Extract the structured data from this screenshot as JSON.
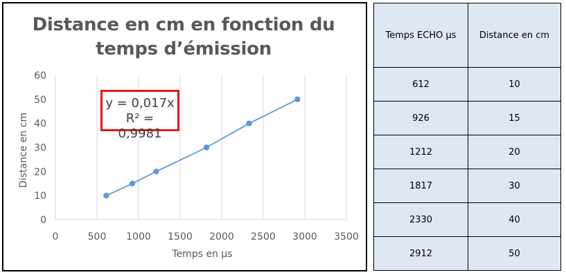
{
  "chart_data": {
    "type": "scatter",
    "title": "Distance en cm en fonction du temps d’émission",
    "xlabel": "Temps en µs",
    "ylabel": "Distance en cm",
    "xlim": [
      0,
      3500
    ],
    "ylim": [
      0,
      60
    ],
    "xticks": [
      0,
      500,
      1000,
      1500,
      2000,
      2500,
      3000,
      3500
    ],
    "yticks": [
      0,
      10,
      20,
      30,
      40,
      50,
      60
    ],
    "grid": "vertical",
    "legend": "none",
    "series": [
      {
        "x": [
          612,
          926,
          1212,
          1817,
          2330,
          2912
        ],
        "y": [
          10,
          15,
          20,
          30,
          40,
          50
        ],
        "color": "#5b9bd5",
        "trendline": {
          "type": "linear",
          "slope": 0.017,
          "intercept": 0
        }
      }
    ],
    "annotations": {
      "equation": "y = 0,017x",
      "r_squared": "R² = 0,9981"
    }
  },
  "table": {
    "headers": [
      "Temps ECHO µs",
      "Distance en cm"
    ],
    "rows": [
      [
        "612",
        "10"
      ],
      [
        "926",
        "15"
      ],
      [
        "1212",
        "20"
      ],
      [
        "1817",
        "30"
      ],
      [
        "2330",
        "40"
      ],
      [
        "2912",
        "50"
      ]
    ]
  }
}
